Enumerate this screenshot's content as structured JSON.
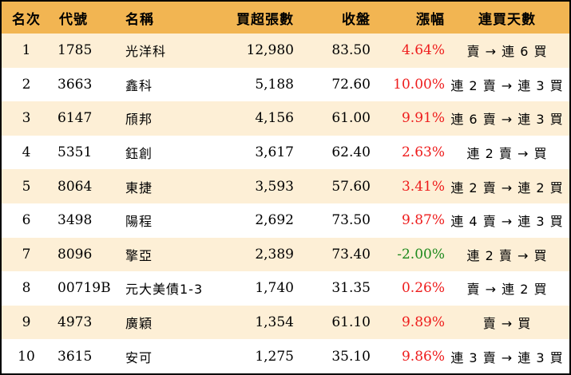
{
  "header": {
    "rank": "名次",
    "code": "代號",
    "name": "名稱",
    "net_buy": "買超張數",
    "close": "收盤",
    "change": "漲幅",
    "streak": "連買天數"
  },
  "rows": [
    {
      "rank": "1",
      "code": "1785",
      "name": "光洋科",
      "net_buy": "12,980",
      "close": "83.50",
      "change": "4.64%",
      "change_dir": "up",
      "streak": "賣 → 連 6 買"
    },
    {
      "rank": "2",
      "code": "3663",
      "name": "鑫科",
      "net_buy": "5,188",
      "close": "72.60",
      "change": "10.00%",
      "change_dir": "up",
      "streak": "連 2 賣 → 連 3 買"
    },
    {
      "rank": "3",
      "code": "6147",
      "name": "頎邦",
      "net_buy": "4,156",
      "close": "61.00",
      "change": "9.91%",
      "change_dir": "up",
      "streak": "連 6 賣 → 連 3 買"
    },
    {
      "rank": "4",
      "code": "5351",
      "name": "鈺創",
      "net_buy": "3,617",
      "close": "62.40",
      "change": "2.63%",
      "change_dir": "up",
      "streak": "連 2 賣 → 買"
    },
    {
      "rank": "5",
      "code": "8064",
      "name": "東捷",
      "net_buy": "3,593",
      "close": "57.60",
      "change": "3.41%",
      "change_dir": "up",
      "streak": "連 2 賣 → 連 2 買"
    },
    {
      "rank": "6",
      "code": "3498",
      "name": "陽程",
      "net_buy": "2,692",
      "close": "73.50",
      "change": "9.87%",
      "change_dir": "up",
      "streak": "連 4 賣 → 連 3 買"
    },
    {
      "rank": "7",
      "code": "8096",
      "name": "擎亞",
      "net_buy": "2,389",
      "close": "73.40",
      "change": "-2.00%",
      "change_dir": "down",
      "streak": "連 2 賣 → 買"
    },
    {
      "rank": "8",
      "code": "00719B",
      "name": "元大美債1-3",
      "net_buy": "1,740",
      "close": "31.35",
      "change": "0.26%",
      "change_dir": "up",
      "streak": "賣 → 連 2 買"
    },
    {
      "rank": "9",
      "code": "4973",
      "name": "廣穎",
      "net_buy": "1,354",
      "close": "61.10",
      "change": "9.89%",
      "change_dir": "up",
      "streak": "賣 → 買"
    },
    {
      "rank": "10",
      "code": "3615",
      "name": "安可",
      "net_buy": "1,275",
      "close": "35.10",
      "change": "9.86%",
      "change_dir": "up",
      "streak": "連 3 賣 → 連 3 買"
    }
  ],
  "colors": {
    "header_bg": "#f2b552",
    "stripe_bg": "#fdefd6",
    "up": "#ee1c1c",
    "down": "#1e8a1e"
  }
}
